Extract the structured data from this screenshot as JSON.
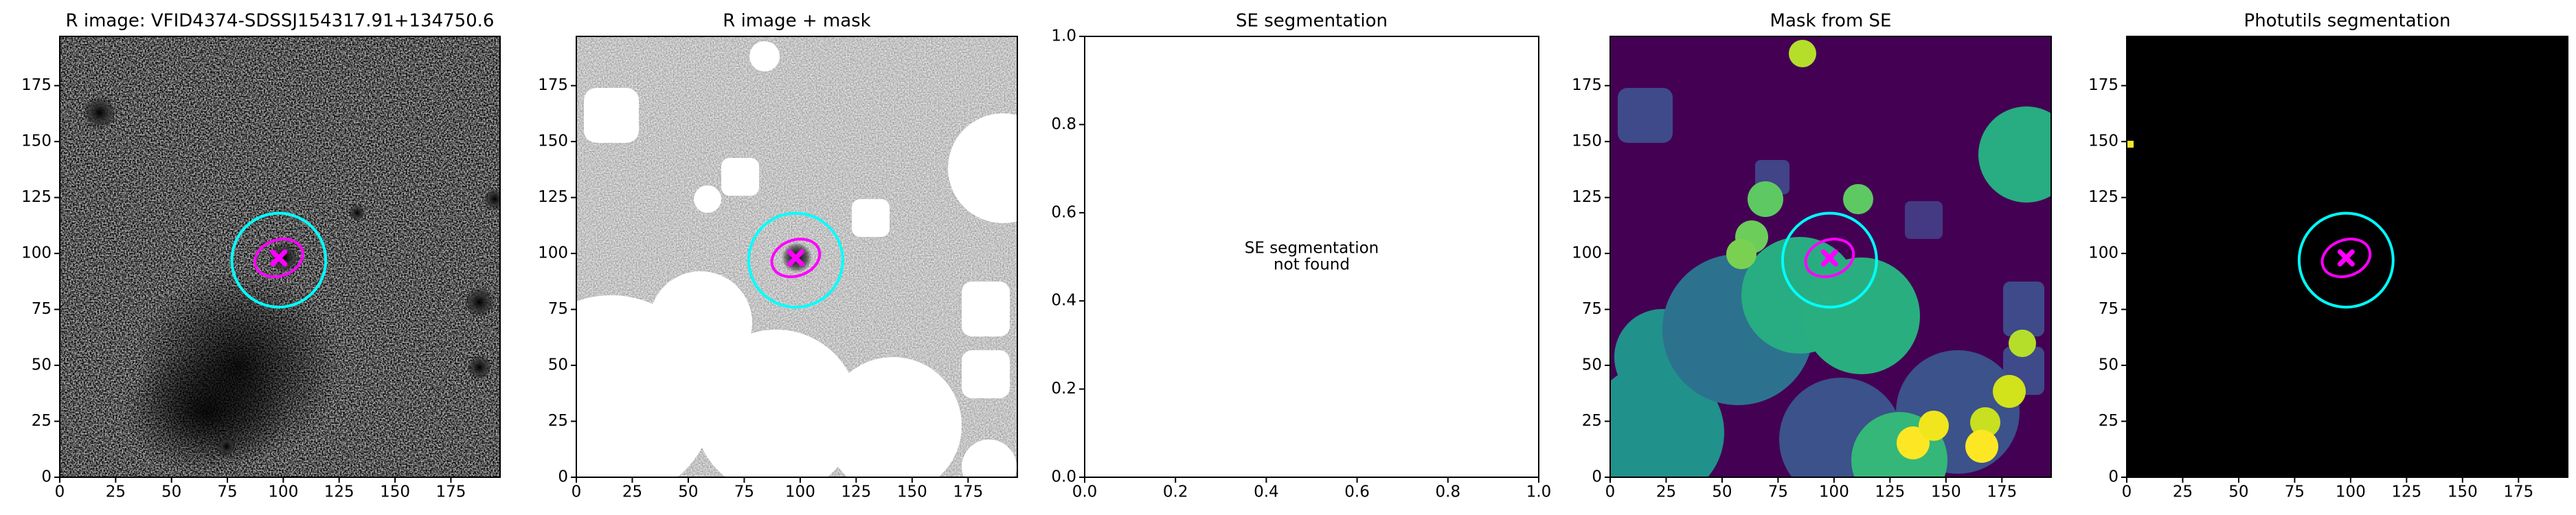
{
  "chart_data": [
    {
      "type": "image",
      "title": "R image: VFID4374-SDSSJ154317.91+134750.6",
      "xlim": [
        0,
        197
      ],
      "ylim": [
        0,
        197
      ],
      "xticks": [
        0,
        25,
        50,
        75,
        100,
        125,
        150,
        175
      ],
      "yticks": [
        0,
        25,
        50,
        75,
        100,
        125,
        150,
        175
      ],
      "apertures": [
        {
          "type": "circle",
          "x": 98,
          "y": 97,
          "r": 21,
          "color": "#00ffff"
        },
        {
          "type": "ellipse",
          "x": 98,
          "y": 98,
          "rx": 11,
          "ry": 8,
          "angle": 20,
          "color": "#ff00ff"
        },
        {
          "type": "marker",
          "x": 98,
          "y": 98,
          "color": "#ff00ff"
        }
      ]
    },
    {
      "type": "image",
      "title": "R image + mask",
      "xlim": [
        0,
        197
      ],
      "ylim": [
        0,
        197
      ],
      "xticks": [
        0,
        25,
        50,
        75,
        100,
        125,
        150,
        175
      ],
      "yticks": [
        0,
        25,
        50,
        75,
        100,
        125,
        150,
        175
      ],
      "apertures": [
        {
          "type": "circle",
          "x": 98,
          "y": 97,
          "r": 21,
          "color": "#00ffff"
        },
        {
          "type": "ellipse",
          "x": 98,
          "y": 98,
          "rx": 11,
          "ry": 8,
          "angle": 20,
          "color": "#ff00ff"
        },
        {
          "type": "marker",
          "x": 98,
          "y": 98,
          "color": "#ff00ff"
        }
      ]
    },
    {
      "type": "empty",
      "title": "SE segmentation",
      "annotation": [
        "SE segmentation",
        "not found"
      ],
      "xlim": [
        0,
        1
      ],
      "ylim": [
        0,
        1
      ],
      "xticks": [
        {
          "value": 0,
          "label": "0.0"
        },
        {
          "value": 0.2,
          "label": "0.2"
        },
        {
          "value": 0.4,
          "label": "0.4"
        },
        {
          "value": 0.6,
          "label": "0.6"
        },
        {
          "value": 0.8,
          "label": "0.8"
        },
        {
          "value": 1,
          "label": "1.0"
        }
      ],
      "yticks": [
        {
          "value": 0,
          "label": "0.0"
        },
        {
          "value": 0.2,
          "label": "0.2"
        },
        {
          "value": 0.4,
          "label": "0.4"
        },
        {
          "value": 0.6,
          "label": "0.6"
        },
        {
          "value": 0.8,
          "label": "0.8"
        },
        {
          "value": 1,
          "label": "1.0"
        }
      ]
    },
    {
      "type": "image",
      "title": "Mask from SE",
      "xlim": [
        0,
        197
      ],
      "ylim": [
        0,
        197
      ],
      "xticks": [
        0,
        25,
        50,
        75,
        100,
        125,
        150,
        175
      ],
      "yticks": [
        0,
        25,
        50,
        75,
        100,
        125,
        150,
        175
      ],
      "apertures": [
        {
          "type": "circle",
          "x": 98,
          "y": 97,
          "r": 21,
          "color": "#00ffff"
        },
        {
          "type": "ellipse",
          "x": 98,
          "y": 98,
          "rx": 11,
          "ry": 8,
          "angle": 20,
          "color": "#ff00ff"
        },
        {
          "type": "marker",
          "x": 98,
          "y": 98,
          "color": "#ff00ff"
        }
      ]
    },
    {
      "type": "image",
      "title": "Photutils segmentation",
      "xlim": [
        0,
        197
      ],
      "ylim": [
        0,
        197
      ],
      "xticks": [
        0,
        25,
        50,
        75,
        100,
        125,
        150,
        175
      ],
      "yticks": [
        0,
        25,
        50,
        75,
        100,
        125,
        150,
        175
      ],
      "apertures": [
        {
          "type": "circle",
          "x": 98,
          "y": 97,
          "r": 21,
          "color": "#00ffff"
        },
        {
          "type": "ellipse",
          "x": 98,
          "y": 98,
          "rx": 11,
          "ry": 8,
          "angle": 20,
          "color": "#ff00ff"
        },
        {
          "type": "marker",
          "x": 98,
          "y": 98,
          "color": "#ff00ff"
        }
      ]
    }
  ]
}
